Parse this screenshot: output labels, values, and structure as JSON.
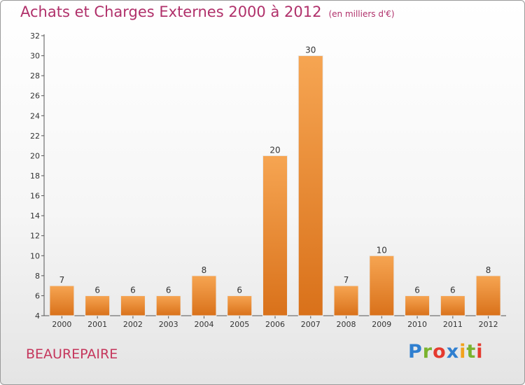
{
  "header": {
    "title": "Achats et Charges Externes 2000 à 2012",
    "subtitle": "(en milliers d'€)"
  },
  "footer": {
    "commune": "BEAUREPAIRE",
    "logo_text": "Proxiti",
    "logo_letters": [
      {
        "ch": "P",
        "color": "#2f7fd0"
      },
      {
        "ch": "r",
        "color": "#7ab32e"
      },
      {
        "ch": "o",
        "color": "#e53a2f"
      },
      {
        "ch": "x",
        "color": "#2f7fd0"
      },
      {
        "ch": "i",
        "color": "#f2a21b"
      },
      {
        "ch": "t",
        "color": "#7ab32e"
      },
      {
        "ch": "i",
        "color": "#e53a2f"
      }
    ]
  },
  "colors": {
    "title": "#b0306a",
    "bar_light": "#f6a552",
    "bar_dark": "#d9711a",
    "axis": "#555555"
  },
  "chart_data": {
    "type": "bar",
    "title": "Achats et Charges Externes 2000 à 2012",
    "subtitle": "(en milliers d'€)",
    "categories": [
      "2000",
      "2001",
      "2002",
      "2003",
      "2004",
      "2005",
      "2006",
      "2007",
      "2008",
      "2009",
      "2010",
      "2011",
      "2012"
    ],
    "values": [
      7,
      6,
      6,
      6,
      8,
      6,
      20,
      30,
      7,
      10,
      6,
      6,
      8
    ],
    "ylim": [
      4,
      32
    ],
    "yticks": [
      4,
      6,
      8,
      10,
      12,
      14,
      16,
      18,
      20,
      22,
      24,
      26,
      28,
      30,
      32
    ],
    "grid": false,
    "xlabel": "",
    "ylabel": ""
  }
}
